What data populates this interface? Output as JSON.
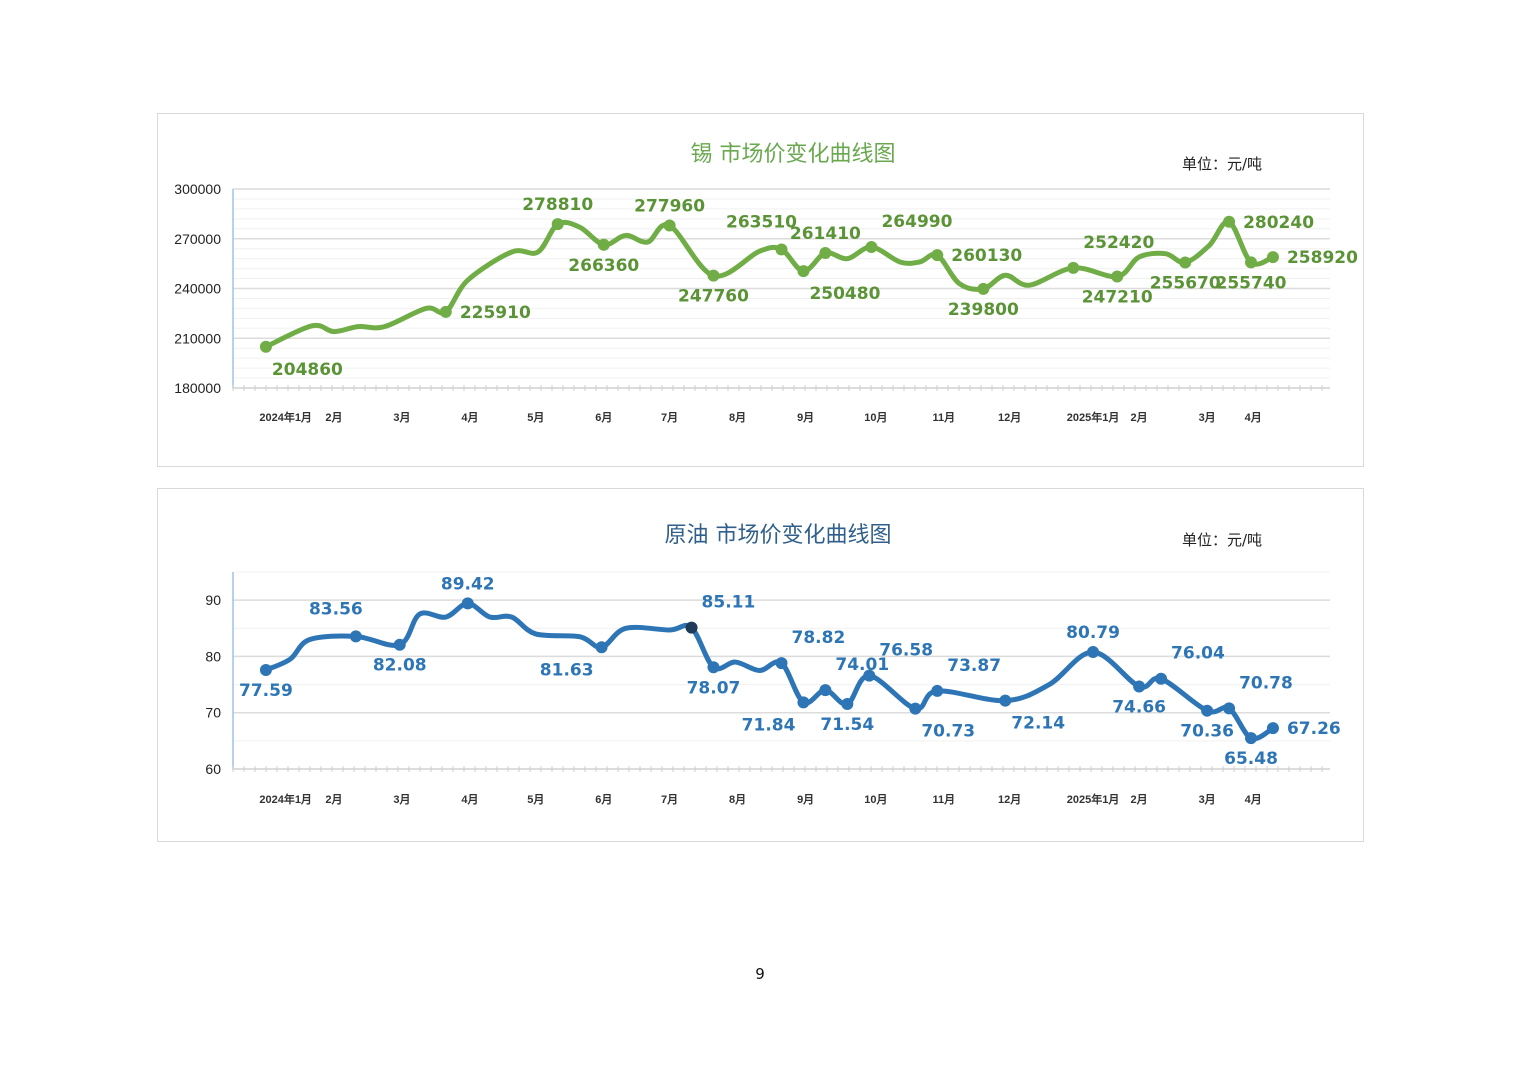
{
  "page_number": "9",
  "chart_data": [
    {
      "type": "line",
      "title": "锡  市场价变化曲线图",
      "unit": "单位：元/吨",
      "xlabel": "",
      "ylabel": "",
      "ylim": [
        180000,
        300000
      ],
      "yticks": [
        180000,
        210000,
        240000,
        270000,
        300000
      ],
      "yminor_step": 6000,
      "xlim": [
        0,
        50
      ],
      "xticks": [
        {
          "x": 2.4,
          "label": "2024年1月"
        },
        {
          "x": 4.6,
          "label": "2月"
        },
        {
          "x": 7.7,
          "label": "3月"
        },
        {
          "x": 10.8,
          "label": "4月"
        },
        {
          "x": 13.8,
          "label": "5月"
        },
        {
          "x": 16.9,
          "label": "6月"
        },
        {
          "x": 19.9,
          "label": "7月"
        },
        {
          "x": 23.0,
          "label": "8月"
        },
        {
          "x": 26.1,
          "label": "9月"
        },
        {
          "x": 29.3,
          "label": "10月"
        },
        {
          "x": 32.4,
          "label": "11月"
        },
        {
          "x": 35.4,
          "label": "12月"
        },
        {
          "x": 39.2,
          "label": "2025年1月"
        },
        {
          "x": 41.3,
          "label": "2月"
        },
        {
          "x": 44.4,
          "label": "3月"
        },
        {
          "x": 46.5,
          "label": "4月"
        }
      ],
      "grid": true,
      "colors": {
        "line": "#70ad47",
        "label": "#5b9337",
        "title": "#6aa84f",
        "axis": "#9dc3e6"
      },
      "points": [
        {
          "x": 1.5,
          "y": 204860,
          "label": "204860",
          "pos": "below-right"
        },
        {
          "x": 3.6,
          "y": 217500
        },
        {
          "x": 4.6,
          "y": 214000
        },
        {
          "x": 5.7,
          "y": 217000
        },
        {
          "x": 6.9,
          "y": 217000
        },
        {
          "x": 8.8,
          "y": 228000
        },
        {
          "x": 9.7,
          "y": 225910,
          "label": "225910",
          "pos": "right"
        },
        {
          "x": 10.7,
          "y": 245000
        },
        {
          "x": 12.7,
          "y": 262000
        },
        {
          "x": 13.9,
          "y": 262000
        },
        {
          "x": 14.8,
          "y": 278810,
          "label": "278810",
          "pos": "above"
        },
        {
          "x": 15.8,
          "y": 277000
        },
        {
          "x": 16.9,
          "y": 266360,
          "label": "266360",
          "pos": "below"
        },
        {
          "x": 17.9,
          "y": 272000
        },
        {
          "x": 18.9,
          "y": 268000
        },
        {
          "x": 19.9,
          "y": 277960,
          "label": "277960",
          "pos": "above"
        },
        {
          "x": 21.9,
          "y": 247760,
          "label": "247760",
          "pos": "below"
        },
        {
          "x": 24.0,
          "y": 262500
        },
        {
          "x": 25.0,
          "y": 263510,
          "label": "263510",
          "pos": "above-left"
        },
        {
          "x": 26.0,
          "y": 250480,
          "label": "250480",
          "pos": "below-right"
        },
        {
          "x": 27.0,
          "y": 261410,
          "label": "261410",
          "pos": "above"
        },
        {
          "x": 28.0,
          "y": 258000
        },
        {
          "x": 29.1,
          "y": 264990,
          "label": "264990",
          "pos": "above-right"
        },
        {
          "x": 30.4,
          "y": 256000
        },
        {
          "x": 31.3,
          "y": 256000
        },
        {
          "x": 32.1,
          "y": 260130,
          "label": "260130",
          "pos": "right"
        },
        {
          "x": 33.1,
          "y": 243000
        },
        {
          "x": 34.2,
          "y": 239800,
          "label": "239800",
          "pos": "below"
        },
        {
          "x": 35.2,
          "y": 248000
        },
        {
          "x": 36.3,
          "y": 242000
        },
        {
          "x": 38.3,
          "y": 252420,
          "label": "252420",
          "pos": "above-right"
        },
        {
          "x": 40.3,
          "y": 247210,
          "label": "247210",
          "pos": "below"
        },
        {
          "x": 41.3,
          "y": 259000
        },
        {
          "x": 42.5,
          "y": 261000
        },
        {
          "x": 43.4,
          "y": 255670,
          "label": "255670",
          "pos": "below"
        },
        {
          "x": 44.5,
          "y": 266000
        },
        {
          "x": 45.4,
          "y": 280240,
          "label": "280240",
          "pos": "right"
        },
        {
          "x": 46.4,
          "y": 255740,
          "label": "255740",
          "pos": "below"
        },
        {
          "x": 47.4,
          "y": 258920,
          "label": "258920",
          "pos": "right"
        }
      ]
    },
    {
      "type": "line",
      "title": "原油  市场价变化曲线图",
      "unit": "单位：元/吨",
      "xlabel": "",
      "ylabel": "",
      "ylim": [
        60,
        95
      ],
      "yticks": [
        60,
        70,
        80,
        90
      ],
      "yminor_step": 5,
      "xlim": [
        0,
        50
      ],
      "xticks": [
        {
          "x": 2.4,
          "label": "2024年1月"
        },
        {
          "x": 4.6,
          "label": "2月"
        },
        {
          "x": 7.7,
          "label": "3月"
        },
        {
          "x": 10.8,
          "label": "4月"
        },
        {
          "x": 13.8,
          "label": "5月"
        },
        {
          "x": 16.9,
          "label": "6月"
        },
        {
          "x": 19.9,
          "label": "7月"
        },
        {
          "x": 23.0,
          "label": "8月"
        },
        {
          "x": 26.1,
          "label": "9月"
        },
        {
          "x": 29.3,
          "label": "10月"
        },
        {
          "x": 32.4,
          "label": "11月"
        },
        {
          "x": 35.4,
          "label": "12月"
        },
        {
          "x": 39.2,
          "label": "2025年1月"
        },
        {
          "x": 41.3,
          "label": "2月"
        },
        {
          "x": 44.4,
          "label": "3月"
        },
        {
          "x": 46.5,
          "label": "4月"
        }
      ],
      "grid": true,
      "colors": {
        "line": "#2e75b6",
        "label": "#2e75b6",
        "title": "#2f5f8a",
        "axis": "#9dc3e6",
        "highlight": "#1f3b5a"
      },
      "points": [
        {
          "x": 1.5,
          "y": 77.59,
          "label": "77.59",
          "pos": "below"
        },
        {
          "x": 2.6,
          "y": 79.5
        },
        {
          "x": 3.5,
          "y": 83
        },
        {
          "x": 5.6,
          "y": 83.56,
          "label": "83.56",
          "pos": "above-left"
        },
        {
          "x": 7.6,
          "y": 82.08,
          "label": "82.08",
          "pos": "below"
        },
        {
          "x": 8.5,
          "y": 87.5
        },
        {
          "x": 9.7,
          "y": 87
        },
        {
          "x": 10.7,
          "y": 89.42,
          "label": "89.42",
          "pos": "above"
        },
        {
          "x": 11.7,
          "y": 87
        },
        {
          "x": 12.7,
          "y": 87
        },
        {
          "x": 13.8,
          "y": 84
        },
        {
          "x": 15.8,
          "y": 83.5
        },
        {
          "x": 16.8,
          "y": 81.63,
          "label": "81.63",
          "pos": "below-left"
        },
        {
          "x": 17.9,
          "y": 85
        },
        {
          "x": 19.9,
          "y": 84.7
        },
        {
          "x": 20.9,
          "y": 85.11,
          "label": "85.11",
          "pos": "above-right",
          "highlight": true
        },
        {
          "x": 21.9,
          "y": 78.07,
          "label": "78.07",
          "pos": "below"
        },
        {
          "x": 22.9,
          "y": 79
        },
        {
          "x": 24.0,
          "y": 77.5
        },
        {
          "x": 25.0,
          "y": 78.82,
          "label": "78.82",
          "pos": "above-right"
        },
        {
          "x": 26.0,
          "y": 71.84,
          "label": "71.84",
          "pos": "below-left"
        },
        {
          "x": 27.0,
          "y": 74.01,
          "label": "74.01",
          "pos": "above-right"
        },
        {
          "x": 28.0,
          "y": 71.54,
          "label": "71.54",
          "pos": "below"
        },
        {
          "x": 29.0,
          "y": 76.58,
          "label": "76.58",
          "pos": "above-right"
        },
        {
          "x": 31.1,
          "y": 70.73,
          "label": "70.73",
          "pos": "below-right"
        },
        {
          "x": 32.1,
          "y": 73.87,
          "label": "73.87",
          "pos": "above-right"
        },
        {
          "x": 35.2,
          "y": 72.14,
          "label": "72.14",
          "pos": "below-right"
        },
        {
          "x": 37.2,
          "y": 75
        },
        {
          "x": 39.2,
          "y": 80.79,
          "label": "80.79",
          "pos": "above"
        },
        {
          "x": 41.3,
          "y": 74.66,
          "label": "74.66",
          "pos": "below"
        },
        {
          "x": 42.3,
          "y": 76.04,
          "label": "76.04",
          "pos": "above-right"
        },
        {
          "x": 44.4,
          "y": 70.36,
          "label": "70.36",
          "pos": "below"
        },
        {
          "x": 45.4,
          "y": 70.78,
          "label": "70.78",
          "pos": "above-right"
        },
        {
          "x": 46.4,
          "y": 65.48,
          "label": "65.48",
          "pos": "below"
        },
        {
          "x": 47.4,
          "y": 67.26,
          "label": "67.26",
          "pos": "right"
        }
      ]
    }
  ]
}
